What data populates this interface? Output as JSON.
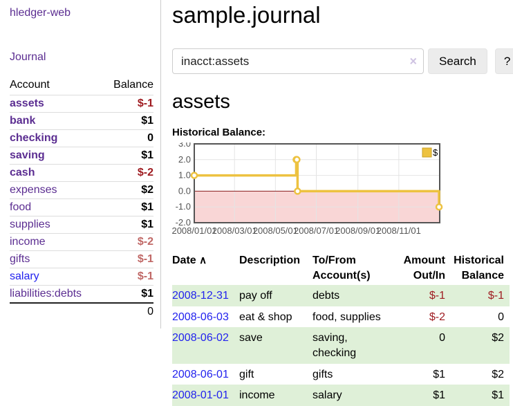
{
  "sidebar": {
    "brand": "hledger-web",
    "nav_journal": "Journal",
    "table": {
      "col_account": "Account",
      "col_balance": "Balance",
      "accounts": [
        {
          "name": "assets",
          "depth": 1,
          "bold": true,
          "balance": "$-1",
          "balance_class": "neg-strong"
        },
        {
          "name": "bank",
          "depth": 2,
          "bold": true,
          "balance": "$1",
          "balance_class": ""
        },
        {
          "name": "checking",
          "depth": 3,
          "bold": true,
          "balance": "0",
          "balance_class": ""
        },
        {
          "name": "saving",
          "depth": 3,
          "bold": true,
          "balance": "$1",
          "balance_class": ""
        },
        {
          "name": "cash",
          "depth": 2,
          "bold": true,
          "balance": "$-2",
          "balance_class": "neg-strong"
        },
        {
          "name": "expenses",
          "depth": 1,
          "bold": false,
          "balance": "$2",
          "balance_class": ""
        },
        {
          "name": "food",
          "depth": 2,
          "bold": false,
          "balance": "$1",
          "balance_class": ""
        },
        {
          "name": "supplies",
          "depth": 2,
          "bold": false,
          "balance": "$1",
          "balance_class": ""
        },
        {
          "name": "income",
          "depth": 1,
          "bold": false,
          "balance": "$-2",
          "balance_class": "neg-muted"
        },
        {
          "name": "gifts",
          "depth": 2,
          "bold": false,
          "balance": "$-1",
          "balance_class": "neg-muted"
        },
        {
          "name": "salary",
          "depth": 2,
          "bold": false,
          "balance": "$-1",
          "balance_class": "neg-muted",
          "link_class": "unvisited"
        },
        {
          "name": "liabilities:debts",
          "depth": 1,
          "bold": false,
          "balance": "$1",
          "balance_class": ""
        }
      ],
      "total": "0"
    }
  },
  "header": {
    "title": "sample.journal"
  },
  "search": {
    "value": "inacct:assets",
    "clear_icon": "×",
    "button_label": "Search",
    "help_label": "?"
  },
  "account_page": {
    "heading": "assets",
    "chart_label": "Historical Balance:"
  },
  "chart_data": {
    "type": "line",
    "style": "step-after",
    "title": "Historical Balance",
    "x_start": "2008-01-01",
    "x_end": "2009-01-01",
    "x_ticks": [
      {
        "date": "2008-01-01",
        "label": "2008/01/01"
      },
      {
        "date": "2008-03-01",
        "label": "2008/03/01"
      },
      {
        "date": "2008-05-01",
        "label": "2008/05/01"
      },
      {
        "date": "2008-07-01",
        "label": "2008/07/01"
      },
      {
        "date": "2008-09-01",
        "label": "2008/09/01"
      },
      {
        "date": "2008-11-01",
        "label": "2008/11/01"
      }
    ],
    "y_ticks": [
      {
        "value": 3,
        "label": "3.0"
      },
      {
        "value": 2,
        "label": "2.0"
      },
      {
        "value": 1,
        "label": "1.0"
      },
      {
        "value": 0,
        "label": "0.0"
      },
      {
        "value": -1,
        "label": "-1.0"
      },
      {
        "value": -2,
        "label": "-2.0"
      }
    ],
    "ylim": [
      -2,
      3
    ],
    "legend_position": "top-right",
    "series": [
      {
        "name": "$",
        "color": "#edc240",
        "points": [
          {
            "date": "2008-01-01",
            "value": 1
          },
          {
            "date": "2008-06-01",
            "value": 2
          },
          {
            "date": "2008-06-02",
            "value": 2
          },
          {
            "date": "2008-06-03",
            "value": 0
          },
          {
            "date": "2008-12-31",
            "value": -1
          }
        ]
      }
    ],
    "colors": {
      "grid": "#e4e4e4",
      "border": "#545454",
      "tick_text": "#545454",
      "negative_region": "#f9d6d6",
      "zero_line": "#8b1c1c",
      "marker_fill": "#ffffff",
      "legend_swatch_border": "#c9a227"
    }
  },
  "register": {
    "columns": {
      "date": "Date",
      "sort_icon": "∧",
      "description": "Description",
      "accounts": "To/From Account(s)",
      "amount": "Amount Out/In",
      "balance": "Historical Balance"
    },
    "rows": [
      {
        "date": "2008-12-31",
        "description": "pay off",
        "accounts": "debts",
        "amount": "$-1",
        "amount_negative": true,
        "balance": "$-1",
        "balance_negative": true,
        "shaded": true
      },
      {
        "date": "2008-06-03",
        "description": "eat & shop",
        "accounts": "food, supplies",
        "amount": "$-2",
        "amount_negative": true,
        "balance": "0",
        "balance_negative": false,
        "shaded": false
      },
      {
        "date": "2008-06-02",
        "description": "save",
        "accounts": "saving, checking",
        "amount": "0",
        "amount_negative": false,
        "balance": "$2",
        "balance_negative": false,
        "shaded": true
      },
      {
        "date": "2008-06-01",
        "description": "gift",
        "accounts": "gifts",
        "amount": "$1",
        "amount_negative": false,
        "balance": "$2",
        "balance_negative": false,
        "shaded": false
      },
      {
        "date": "2008-01-01",
        "description": "income",
        "accounts": "salary",
        "amount": "$1",
        "amount_negative": false,
        "balance": "$1",
        "balance_negative": false,
        "shaded": true
      }
    ]
  }
}
